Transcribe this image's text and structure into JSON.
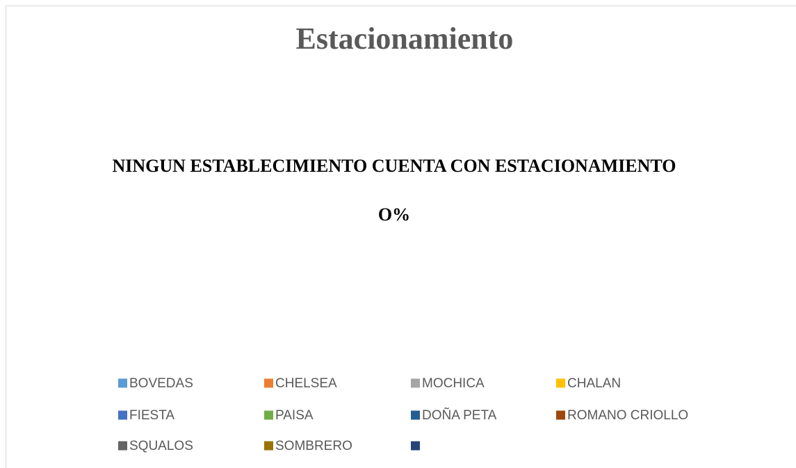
{
  "chart_data": {
    "type": "pie",
    "title": "Estacionamiento",
    "annotations": [
      "NINGUN ESTABLECIMIENTO CUENTA CON ESTACIONAMIENTO",
      "O%"
    ],
    "categories": [
      "BOVEDAS",
      "CHELSEA",
      "MOCHICA",
      "CHALAN",
      "FIESTA",
      "PAISA",
      "DOÑA PETA",
      "ROMANO CRIOLLO",
      "SQUALOS",
      "SOMBRERO",
      null
    ],
    "colors": [
      "#5b9bd5",
      "#ed7d31",
      "#a5a5a5",
      "#ffc000",
      "#4472c4",
      "#70ad47",
      "#255e91",
      "#9e480e",
      "#636363",
      "#997300",
      "#264478"
    ],
    "legend": "bottom"
  }
}
